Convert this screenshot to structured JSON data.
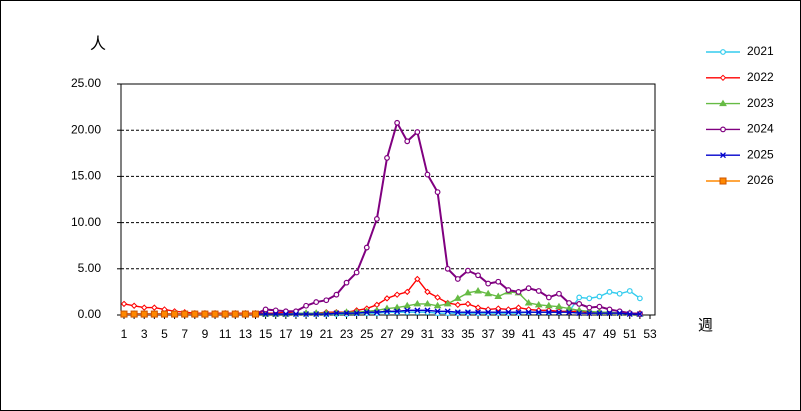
{
  "chart_data": {
    "type": "line",
    "y_label": "人",
    "x_label": "週",
    "categories": [
      1,
      null,
      3,
      null,
      5,
      null,
      7,
      null,
      9,
      null,
      11,
      null,
      13,
      null,
      15,
      null,
      17,
      null,
      19,
      null,
      21,
      null,
      23,
      null,
      25,
      null,
      27,
      null,
      29,
      null,
      31,
      null,
      33,
      null,
      35,
      null,
      37,
      null,
      39,
      null,
      41,
      null,
      43,
      null,
      45,
      null,
      47,
      null,
      49,
      null,
      51,
      null,
      53
    ],
    "ylim": [
      0,
      25
    ],
    "yticks": [
      {
        "value": 0,
        "label": "0.00"
      },
      {
        "value": 5,
        "label": "5.00"
      },
      {
        "value": 10,
        "label": "10.00"
      },
      {
        "value": 15,
        "label": "15.00"
      },
      {
        "value": 20,
        "label": "20.00"
      },
      {
        "value": 25,
        "label": "25.00"
      }
    ],
    "grid": true,
    "legend": "right",
    "series": [
      {
        "name": "2021",
        "color": "#33ccee",
        "marker": "circle",
        "values": [
          0.1,
          0.1,
          0.1,
          0.1,
          0.1,
          0.1,
          0.1,
          0.1,
          0.1,
          0.1,
          0.1,
          0.1,
          0.1,
          0.1,
          0.1,
          0.1,
          0.1,
          0.1,
          0.1,
          0.1,
          0.1,
          0.1,
          0.1,
          0.2,
          0.2,
          0.2,
          0.3,
          0.3,
          0.3,
          0.3,
          0.3,
          0.2,
          0.2,
          0.2,
          0.2,
          0.2,
          0.2,
          0.2,
          0.2,
          0.2,
          0.3,
          0.3,
          0.3,
          0.3,
          0.4,
          1.9,
          1.8,
          2.0,
          2.5,
          2.3,
          2.6,
          1.8,
          null
        ]
      },
      {
        "name": "2022",
        "color": "#ff0000",
        "marker": "diamond",
        "values": [
          1.2,
          1.0,
          0.8,
          0.8,
          0.6,
          0.4,
          0.3,
          0.2,
          0.2,
          0.2,
          0.2,
          0.2,
          0.2,
          0.2,
          0.2,
          0.2,
          0.3,
          0.2,
          0.2,
          0.2,
          0.3,
          0.3,
          0.3,
          0.5,
          0.7,
          1.1,
          1.8,
          2.2,
          2.5,
          3.9,
          2.5,
          1.9,
          1.3,
          1.1,
          1.2,
          0.8,
          0.6,
          0.7,
          0.6,
          0.8,
          0.6,
          0.5,
          0.5,
          0.4,
          0.4,
          0.4,
          0.3,
          0.3,
          0.3,
          0.2,
          0.2,
          0.2,
          null
        ]
      },
      {
        "name": "2023",
        "color": "#66bb44",
        "marker": "triangle",
        "values": [
          0.1,
          0.1,
          0.1,
          0.1,
          0.1,
          0.1,
          0.1,
          0.1,
          0.1,
          0.1,
          0.1,
          0.1,
          0.1,
          0.1,
          0.1,
          0.1,
          0.1,
          0.2,
          0.2,
          0.2,
          0.2,
          0.2,
          0.3,
          0.3,
          0.4,
          0.5,
          0.7,
          0.8,
          1.0,
          1.2,
          1.2,
          1.0,
          1.2,
          1.8,
          2.4,
          2.6,
          2.3,
          2.0,
          2.5,
          2.4,
          1.3,
          1.1,
          1.0,
          0.9,
          0.7,
          0.5,
          0.4,
          0.3,
          0.3,
          0.2,
          0.2,
          0.1,
          null
        ]
      },
      {
        "name": "2024",
        "color": "#800080",
        "marker": "circle",
        "values": [
          0.1,
          0.1,
          0.1,
          0.1,
          0.1,
          0.1,
          0.1,
          0.1,
          0.1,
          0.1,
          0.1,
          0.1,
          0.1,
          0.1,
          0.6,
          0.5,
          0.4,
          0.4,
          1.0,
          1.4,
          1.6,
          2.2,
          3.5,
          4.6,
          7.3,
          10.4,
          17.0,
          20.8,
          18.8,
          19.8,
          15.2,
          13.3,
          5.0,
          3.9,
          4.8,
          4.3,
          3.4,
          3.6,
          2.7,
          2.5,
          2.9,
          2.6,
          1.9,
          2.3,
          1.3,
          1.2,
          0.8,
          0.9,
          0.6,
          0.4,
          0.2,
          0.1,
          null
        ]
      },
      {
        "name": "2025",
        "color": "#0000cc",
        "marker": "x",
        "values": [
          0.1,
          0.1,
          0.1,
          0.1,
          0.1,
          0.1,
          0.1,
          0.1,
          0.1,
          0.1,
          0.1,
          0.1,
          0.1,
          0.1,
          0.1,
          0.1,
          0.1,
          0.1,
          0.1,
          0.1,
          0.1,
          0.2,
          0.2,
          0.2,
          0.3,
          0.3,
          0.4,
          0.4,
          0.5,
          0.5,
          0.5,
          0.4,
          0.4,
          0.3,
          0.3,
          0.3,
          0.3,
          0.3,
          0.3,
          0.3,
          0.3,
          0.3,
          0.3,
          0.3,
          0.3,
          0.2,
          0.2,
          0.2,
          0.2,
          0.2,
          0.1,
          0.1,
          null
        ]
      },
      {
        "name": "2026",
        "color": "#ff8800",
        "marker": "square",
        "values": [
          0.1,
          0.1,
          0.1,
          0.1,
          0.1,
          0.1,
          0.1,
          0.1,
          0.1,
          0.1,
          0.1,
          0.1,
          0.1,
          0.1,
          null,
          null,
          null,
          null,
          null,
          null,
          null,
          null,
          null,
          null,
          null,
          null,
          null,
          null,
          null,
          null,
          null,
          null,
          null,
          null,
          null,
          null,
          null,
          null,
          null,
          null,
          null,
          null,
          null,
          null,
          null,
          null,
          null,
          null,
          null,
          null,
          null,
          null,
          null
        ]
      }
    ]
  }
}
